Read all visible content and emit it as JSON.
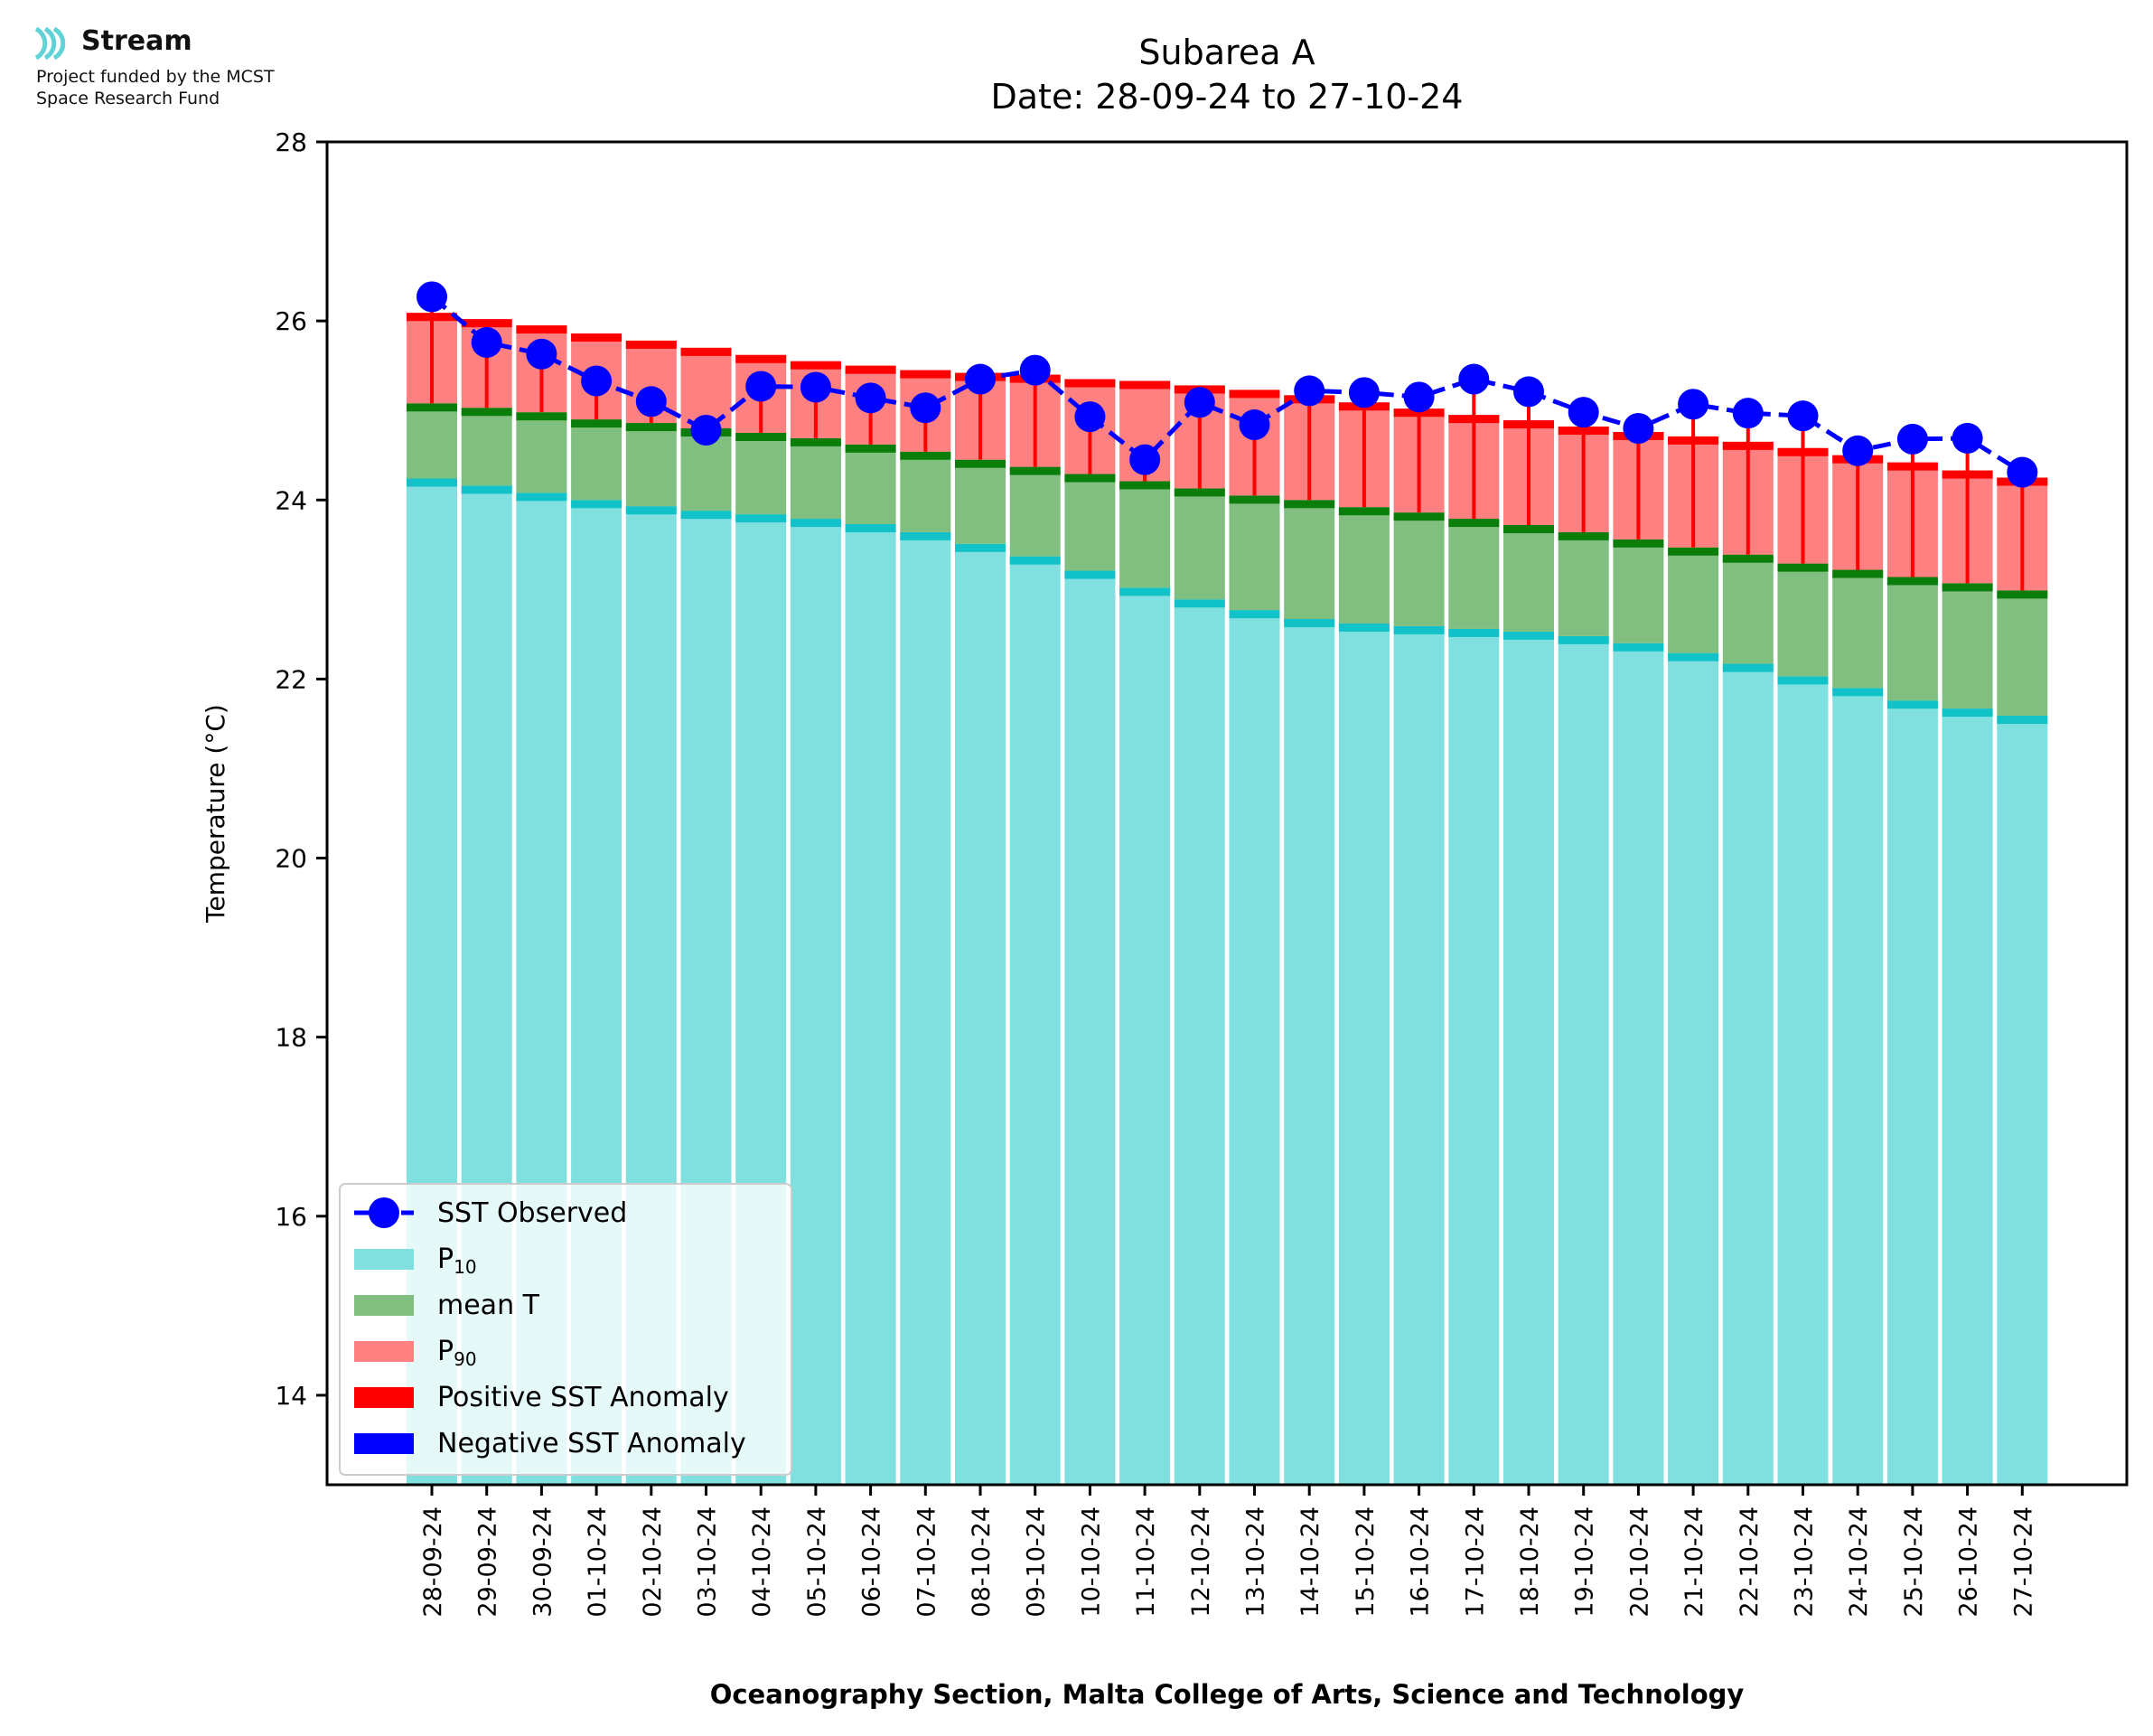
{
  "branding": {
    "name": "Stream",
    "funding_line1": "Project funded by the MCST",
    "funding_line2": "Space Research Fund"
  },
  "colors": {
    "p10": "#80dfdf",
    "p10_edge": "#11c3c9",
    "mean": "#80bf80",
    "mean_edge": "#0a7d0a",
    "p90": "#ff8080",
    "p90_edge": "#ff0000",
    "anomaly_positive": "#ff0000",
    "anomaly_negative": "#0000ff",
    "observed": "#0000ff"
  },
  "chart_data": {
    "type": "bar",
    "title": "Subarea A",
    "subtitle": "Date: 28-09-24 to 27-10-24",
    "xlabel": "Oceanography Section, Malta College of Arts, Science and Technology",
    "ylabel": "Temperature (°C)",
    "ylim": [
      13,
      28
    ],
    "yticks": [
      14,
      16,
      18,
      20,
      22,
      24,
      26,
      28
    ],
    "grid": false,
    "legend_position": "lower-left",
    "categories": [
      "28-09-24",
      "29-09-24",
      "30-09-24",
      "01-10-24",
      "02-10-24",
      "03-10-24",
      "04-10-24",
      "05-10-24",
      "06-10-24",
      "07-10-24",
      "08-10-24",
      "09-10-24",
      "10-10-24",
      "11-10-24",
      "12-10-24",
      "13-10-24",
      "14-10-24",
      "15-10-24",
      "16-10-24",
      "17-10-24",
      "18-10-24",
      "19-10-24",
      "20-10-24",
      "21-10-24",
      "22-10-24",
      "23-10-24",
      "24-10-24",
      "25-10-24",
      "26-10-24",
      "27-10-24"
    ],
    "series": [
      {
        "name": "SST Observed",
        "kind": "line",
        "values": [
          26.27,
          25.76,
          25.63,
          25.33,
          25.1,
          24.78,
          25.27,
          25.26,
          25.14,
          25.03,
          25.35,
          25.45,
          24.93,
          24.45,
          25.09,
          24.84,
          25.22,
          25.2,
          25.15,
          25.35,
          25.21,
          24.98,
          24.8,
          25.07,
          24.97,
          24.94,
          24.55,
          24.68,
          24.69,
          24.31
        ]
      },
      {
        "name": "P10",
        "kind": "bar",
        "values": [
          24.24,
          24.16,
          24.08,
          24.0,
          23.93,
          23.88,
          23.84,
          23.79,
          23.73,
          23.64,
          23.51,
          23.37,
          23.21,
          23.02,
          22.89,
          22.77,
          22.67,
          22.62,
          22.59,
          22.56,
          22.53,
          22.48,
          22.4,
          22.29,
          22.17,
          22.03,
          21.9,
          21.76,
          21.67,
          21.59
        ]
      },
      {
        "name": "mean T",
        "kind": "bar",
        "values": [
          25.08,
          25.03,
          24.98,
          24.9,
          24.86,
          24.8,
          24.75,
          24.69,
          24.62,
          24.54,
          24.45,
          24.37,
          24.29,
          24.21,
          24.13,
          24.05,
          24.0,
          23.92,
          23.86,
          23.79,
          23.72,
          23.64,
          23.56,
          23.47,
          23.39,
          23.29,
          23.22,
          23.14,
          23.07,
          22.99
        ]
      },
      {
        "name": "P90",
        "kind": "bar",
        "values": [
          26.09,
          26.02,
          25.95,
          25.86,
          25.78,
          25.7,
          25.62,
          25.55,
          25.5,
          25.45,
          25.42,
          25.4,
          25.35,
          25.33,
          25.28,
          25.23,
          25.17,
          25.09,
          25.02,
          24.95,
          24.89,
          24.82,
          24.76,
          24.71,
          24.65,
          24.58,
          24.5,
          24.42,
          24.33,
          24.25
        ]
      }
    ],
    "legend": [
      "SST Observed",
      "P10",
      "mean T",
      "P90",
      "Positive SST Anomaly",
      "Negative SST Anomaly"
    ]
  }
}
